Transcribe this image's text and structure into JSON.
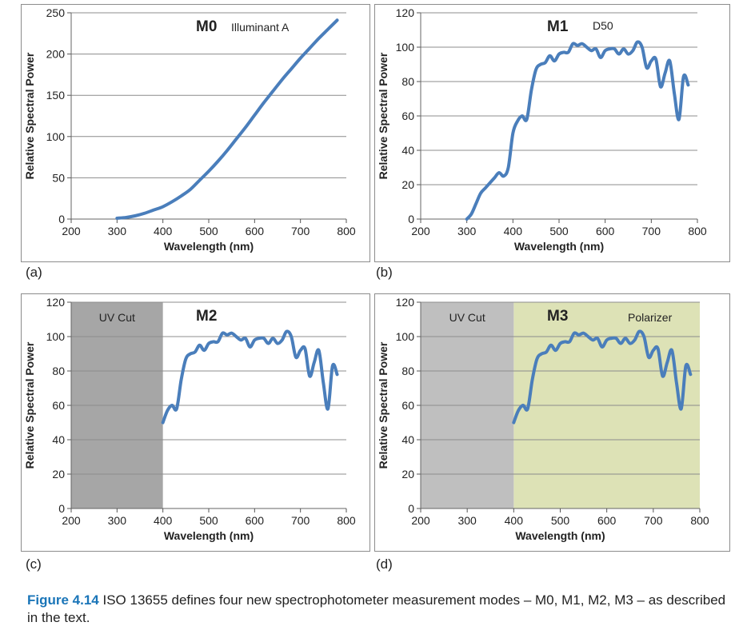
{
  "figure": {
    "caption_label": "Figure 4.14",
    "caption_text": "ISO 13655 defines four new spectrophotometer measurement modes – M0, M1, M2, M3 – as described in the text."
  },
  "colors": {
    "line": "#4a7ebb",
    "uv_cut_dark": "#a6a6a6",
    "uv_cut_light": "#bfbfbf",
    "polarizer": "#dde2b6",
    "grid": "#8c8c8c"
  },
  "chart_data": [
    {
      "panel_label": "(a)",
      "type": "line",
      "mode": "M0",
      "illuminant": "Illuminant A",
      "xlabel": "Wavelength (nm)",
      "ylabel": "Relative Spectral Power",
      "xlim": [
        200,
        800
      ],
      "ylim": [
        0,
        250
      ],
      "xticks": [
        200,
        300,
        400,
        500,
        600,
        700,
        800
      ],
      "yticks": [
        0,
        50,
        100,
        150,
        200,
        250
      ],
      "grid": true,
      "series": [
        {
          "x": [
            300,
            320,
            340,
            360,
            380,
            400,
            420,
            440,
            460,
            480,
            500,
            520,
            540,
            560,
            580,
            600,
            620,
            640,
            660,
            680,
            700,
            720,
            740,
            760,
            780
          ],
          "values": [
            1,
            2,
            4,
            7,
            11,
            15,
            21,
            28,
            36,
            47,
            58,
            70,
            83,
            97,
            111,
            126,
            141,
            155,
            169,
            182,
            195,
            207,
            219,
            230,
            241
          ]
        }
      ]
    },
    {
      "panel_label": "(b)",
      "type": "line",
      "mode": "M1",
      "illuminant": "D50",
      "xlabel": "Wavelength (nm)",
      "ylabel": "Relative Spectral Power",
      "xlim": [
        200,
        800
      ],
      "ylim": [
        0,
        120
      ],
      "xticks": [
        200,
        300,
        400,
        500,
        600,
        700,
        800
      ],
      "yticks": [
        0,
        20,
        40,
        60,
        80,
        100,
        120
      ],
      "grid": true,
      "series": [
        {
          "x": [
            300,
            310,
            320,
            330,
            340,
            350,
            360,
            370,
            380,
            390,
            400,
            410,
            420,
            430,
            440,
            450,
            460,
            470,
            480,
            490,
            500,
            510,
            520,
            530,
            540,
            550,
            560,
            570,
            580,
            590,
            600,
            610,
            620,
            630,
            640,
            650,
            660,
            670,
            680,
            690,
            700,
            710,
            720,
            730,
            740,
            750,
            760,
            770,
            780
          ],
          "values": [
            0,
            3,
            9,
            15,
            18,
            21,
            24,
            27,
            25,
            30,
            50,
            57,
            60,
            58,
            75,
            87,
            90,
            91,
            95,
            92,
            96,
            97,
            97,
            102,
            101,
            102,
            100,
            98,
            99,
            94,
            98,
            99,
            99,
            96,
            99,
            96,
            98,
            103,
            100,
            88,
            92,
            93,
            77,
            85,
            92,
            73,
            58,
            83,
            78
          ]
        }
      ]
    },
    {
      "panel_label": "(c)",
      "type": "line",
      "mode": "M2",
      "shaded_region": {
        "label": "UV Cut",
        "x": [
          200,
          400
        ]
      },
      "xlabel": "Wavelength (nm)",
      "ylabel": "Relative Spectral Power",
      "xlim": [
        200,
        800
      ],
      "ylim": [
        0,
        120
      ],
      "xticks": [
        200,
        300,
        400,
        500,
        600,
        700,
        800
      ],
      "yticks": [
        0,
        20,
        40,
        60,
        80,
        100,
        120
      ],
      "grid": true,
      "series": [
        {
          "x": [
            400,
            410,
            420,
            430,
            440,
            450,
            460,
            470,
            480,
            490,
            500,
            510,
            520,
            530,
            540,
            550,
            560,
            570,
            580,
            590,
            600,
            610,
            620,
            630,
            640,
            650,
            660,
            670,
            680,
            690,
            700,
            710,
            720,
            730,
            740,
            750,
            760,
            770,
            780
          ],
          "values": [
            50,
            57,
            60,
            58,
            75,
            87,
            90,
            91,
            95,
            92,
            96,
            97,
            97,
            102,
            101,
            102,
            100,
            98,
            99,
            94,
            98,
            99,
            99,
            96,
            99,
            96,
            98,
            103,
            100,
            88,
            92,
            93,
            77,
            85,
            92,
            73,
            58,
            83,
            78
          ]
        }
      ]
    },
    {
      "panel_label": "(d)",
      "type": "line",
      "mode": "M3",
      "shaded_region": {
        "label": "UV Cut",
        "x": [
          200,
          400
        ]
      },
      "filter_region": {
        "label": "Polarizer",
        "x": [
          400,
          800
        ]
      },
      "xlabel": "Wavelength (nm)",
      "ylabel": "Relative Spectral Power",
      "xlim": [
        200,
        800
      ],
      "ylim": [
        0,
        120
      ],
      "xticks": [
        200,
        300,
        400,
        500,
        600,
        700,
        800
      ],
      "yticks": [
        0,
        20,
        40,
        60,
        80,
        100,
        120
      ],
      "grid": true,
      "series": [
        {
          "x": [
            400,
            410,
            420,
            430,
            440,
            450,
            460,
            470,
            480,
            490,
            500,
            510,
            520,
            530,
            540,
            550,
            560,
            570,
            580,
            590,
            600,
            610,
            620,
            630,
            640,
            650,
            660,
            670,
            680,
            690,
            700,
            710,
            720,
            730,
            740,
            750,
            760,
            770,
            780
          ],
          "values": [
            50,
            57,
            60,
            58,
            75,
            87,
            90,
            91,
            95,
            92,
            96,
            97,
            97,
            102,
            101,
            102,
            100,
            98,
            99,
            94,
            98,
            99,
            99,
            96,
            99,
            96,
            98,
            103,
            100,
            88,
            92,
            93,
            77,
            85,
            92,
            73,
            58,
            83,
            78
          ]
        }
      ]
    }
  ]
}
